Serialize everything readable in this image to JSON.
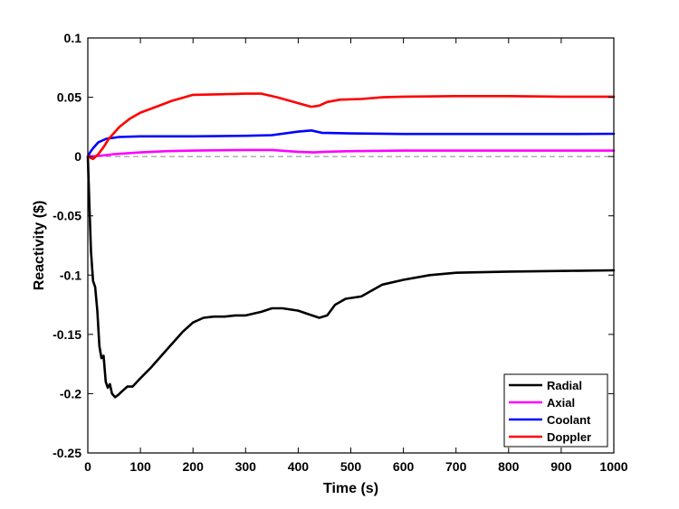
{
  "chart_data": {
    "type": "line",
    "title": "",
    "xlabel": "Time (s)",
    "ylabel": "Reactivity ($)",
    "xlim": [
      0,
      1000
    ],
    "ylim": [
      -0.25,
      0.1
    ],
    "xticks": [
      0,
      100,
      200,
      300,
      400,
      500,
      600,
      700,
      800,
      900,
      1000
    ],
    "yticks": [
      0.1,
      0.05,
      0,
      -0.05,
      -0.1,
      -0.15,
      -0.2,
      -0.25
    ],
    "ytick_labels": [
      "0.1",
      "0.05",
      "0",
      "-0.05",
      "-0.1",
      "-0.15",
      "-0.2",
      "-0.25"
    ],
    "grid": false,
    "zero_line": {
      "y": 0,
      "style": "dashed",
      "color": "#888888"
    },
    "legend_position": "bottom-right",
    "series": [
      {
        "name": "Radial",
        "color": "#000000",
        "points": [
          [
            0,
            0
          ],
          [
            3,
            -0.04
          ],
          [
            6,
            -0.08
          ],
          [
            10,
            -0.105
          ],
          [
            14,
            -0.11
          ],
          [
            18,
            -0.13
          ],
          [
            22,
            -0.16
          ],
          [
            26,
            -0.17
          ],
          [
            30,
            -0.168
          ],
          [
            34,
            -0.19
          ],
          [
            38,
            -0.195
          ],
          [
            42,
            -0.192
          ],
          [
            46,
            -0.2
          ],
          [
            52,
            -0.203
          ],
          [
            58,
            -0.201
          ],
          [
            65,
            -0.198
          ],
          [
            75,
            -0.194
          ],
          [
            85,
            -0.194
          ],
          [
            100,
            -0.187
          ],
          [
            120,
            -0.178
          ],
          [
            150,
            -0.163
          ],
          [
            180,
            -0.148
          ],
          [
            200,
            -0.14
          ],
          [
            220,
            -0.136
          ],
          [
            240,
            -0.135
          ],
          [
            260,
            -0.135
          ],
          [
            280,
            -0.134
          ],
          [
            300,
            -0.134
          ],
          [
            330,
            -0.131
          ],
          [
            350,
            -0.128
          ],
          [
            370,
            -0.128
          ],
          [
            400,
            -0.13
          ],
          [
            420,
            -0.133
          ],
          [
            440,
            -0.136
          ],
          [
            455,
            -0.134
          ],
          [
            470,
            -0.125
          ],
          [
            490,
            -0.12
          ],
          [
            520,
            -0.118
          ],
          [
            560,
            -0.108
          ],
          [
            600,
            -0.104
          ],
          [
            650,
            -0.1
          ],
          [
            700,
            -0.098
          ],
          [
            800,
            -0.097
          ],
          [
            900,
            -0.0965
          ],
          [
            1000,
            -0.096
          ]
        ]
      },
      {
        "name": "Axial",
        "color": "#ff00ff",
        "points": [
          [
            0,
            0
          ],
          [
            20,
            0.0005
          ],
          [
            50,
            0.002
          ],
          [
            100,
            0.0035
          ],
          [
            150,
            0.0045
          ],
          [
            200,
            0.005
          ],
          [
            300,
            0.0055
          ],
          [
            350,
            0.0055
          ],
          [
            400,
            0.004
          ],
          [
            430,
            0.0035
          ],
          [
            450,
            0.004
          ],
          [
            500,
            0.0045
          ],
          [
            600,
            0.005
          ],
          [
            700,
            0.005
          ],
          [
            800,
            0.005
          ],
          [
            900,
            0.005
          ],
          [
            1000,
            0.005
          ]
        ]
      },
      {
        "name": "Coolant",
        "color": "#0000ff",
        "points": [
          [
            0,
            0
          ],
          [
            5,
            0.004
          ],
          [
            10,
            0.007
          ],
          [
            20,
            0.012
          ],
          [
            35,
            0.015
          ],
          [
            60,
            0.0165
          ],
          [
            100,
            0.017
          ],
          [
            200,
            0.017
          ],
          [
            300,
            0.0175
          ],
          [
            350,
            0.018
          ],
          [
            400,
            0.021
          ],
          [
            425,
            0.022
          ],
          [
            445,
            0.02
          ],
          [
            500,
            0.0195
          ],
          [
            600,
            0.019
          ],
          [
            700,
            0.019
          ],
          [
            800,
            0.019
          ],
          [
            900,
            0.019
          ],
          [
            1000,
            0.0192
          ]
        ]
      },
      {
        "name": "Doppler",
        "color": "#ff0000",
        "points": [
          [
            0,
            0
          ],
          [
            10,
            -0.002
          ],
          [
            20,
            0.002
          ],
          [
            30,
            0.008
          ],
          [
            40,
            0.015
          ],
          [
            60,
            0.025
          ],
          [
            80,
            0.032
          ],
          [
            100,
            0.037
          ],
          [
            130,
            0.042
          ],
          [
            160,
            0.047
          ],
          [
            200,
            0.052
          ],
          [
            250,
            0.0525
          ],
          [
            300,
            0.053
          ],
          [
            330,
            0.053
          ],
          [
            360,
            0.05
          ],
          [
            400,
            0.045
          ],
          [
            425,
            0.042
          ],
          [
            440,
            0.043
          ],
          [
            455,
            0.046
          ],
          [
            480,
            0.048
          ],
          [
            520,
            0.0485
          ],
          [
            560,
            0.05
          ],
          [
            600,
            0.0505
          ],
          [
            700,
            0.051
          ],
          [
            800,
            0.051
          ],
          [
            900,
            0.0505
          ],
          [
            1000,
            0.0505
          ]
        ]
      }
    ]
  }
}
